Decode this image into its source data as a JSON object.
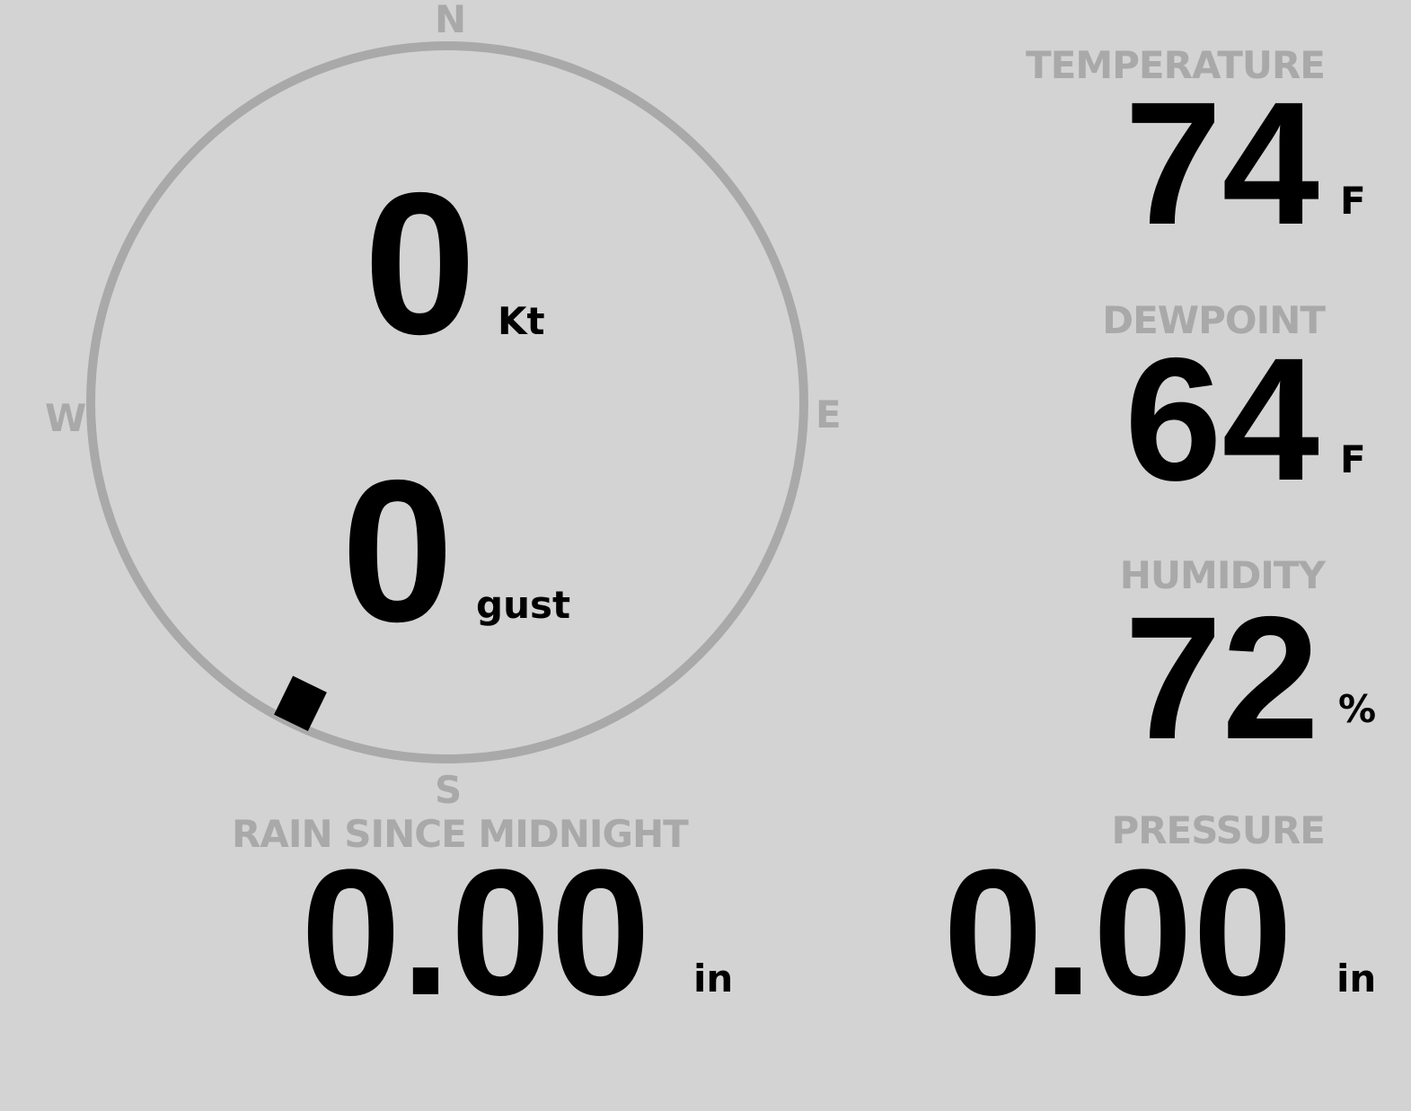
{
  "wind": {
    "speed": "0",
    "speed_unit": "Kt",
    "gust": "0",
    "gust_unit": "gust",
    "direction_deg": 206,
    "compass": {
      "n": "N",
      "e": "E",
      "s": "S",
      "w": "W"
    }
  },
  "temperature": {
    "label": "TEMPERATURE",
    "value": "74",
    "unit": "F"
  },
  "dewpoint": {
    "label": "DEWPOINT",
    "value": "64",
    "unit": "F"
  },
  "humidity": {
    "label": "HUMIDITY",
    "value": "72",
    "unit": "%"
  },
  "rain": {
    "label": "RAIN SINCE MIDNIGHT",
    "value": "0.00",
    "unit": "in"
  },
  "pressure": {
    "label": "PRESSURE",
    "value": "0.00",
    "unit": "in"
  },
  "colors": {
    "background": "#d3d3d3",
    "label": "#a9a9a9",
    "value": "#000000"
  }
}
